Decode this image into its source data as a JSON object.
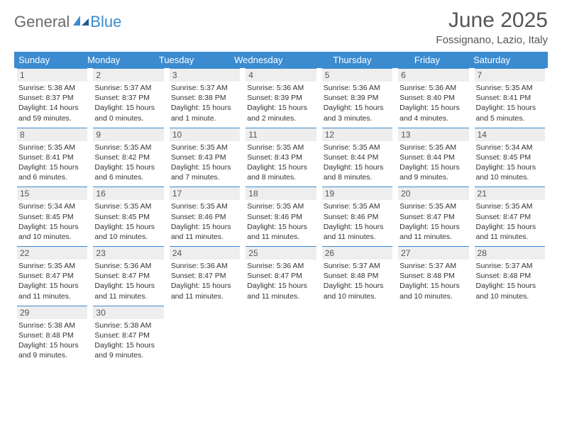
{
  "logo": {
    "text1": "General",
    "text2": "Blue"
  },
  "title": {
    "month": "June 2025",
    "location": "Fossignano, Lazio, Italy"
  },
  "colors": {
    "header_bg": "#3b8bd0",
    "header_text": "#ffffff",
    "daynum_bg": "#eeeeee",
    "daynum_border": "#3b8bd0",
    "body_text": "#333333",
    "title_text": "#555555",
    "logo_gray": "#6a6a6a",
    "logo_blue": "#3b8bd0"
  },
  "day_names": [
    "Sunday",
    "Monday",
    "Tuesday",
    "Wednesday",
    "Thursday",
    "Friday",
    "Saturday"
  ],
  "weeks": [
    [
      {
        "n": "1",
        "sunrise": "Sunrise: 5:38 AM",
        "sunset": "Sunset: 8:37 PM",
        "daylight": "Daylight: 14 hours and 59 minutes."
      },
      {
        "n": "2",
        "sunrise": "Sunrise: 5:37 AM",
        "sunset": "Sunset: 8:37 PM",
        "daylight": "Daylight: 15 hours and 0 minutes."
      },
      {
        "n": "3",
        "sunrise": "Sunrise: 5:37 AM",
        "sunset": "Sunset: 8:38 PM",
        "daylight": "Daylight: 15 hours and 1 minute."
      },
      {
        "n": "4",
        "sunrise": "Sunrise: 5:36 AM",
        "sunset": "Sunset: 8:39 PM",
        "daylight": "Daylight: 15 hours and 2 minutes."
      },
      {
        "n": "5",
        "sunrise": "Sunrise: 5:36 AM",
        "sunset": "Sunset: 8:39 PM",
        "daylight": "Daylight: 15 hours and 3 minutes."
      },
      {
        "n": "6",
        "sunrise": "Sunrise: 5:36 AM",
        "sunset": "Sunset: 8:40 PM",
        "daylight": "Daylight: 15 hours and 4 minutes."
      },
      {
        "n": "7",
        "sunrise": "Sunrise: 5:35 AM",
        "sunset": "Sunset: 8:41 PM",
        "daylight": "Daylight: 15 hours and 5 minutes."
      }
    ],
    [
      {
        "n": "8",
        "sunrise": "Sunrise: 5:35 AM",
        "sunset": "Sunset: 8:41 PM",
        "daylight": "Daylight: 15 hours and 6 minutes."
      },
      {
        "n": "9",
        "sunrise": "Sunrise: 5:35 AM",
        "sunset": "Sunset: 8:42 PM",
        "daylight": "Daylight: 15 hours and 6 minutes."
      },
      {
        "n": "10",
        "sunrise": "Sunrise: 5:35 AM",
        "sunset": "Sunset: 8:43 PM",
        "daylight": "Daylight: 15 hours and 7 minutes."
      },
      {
        "n": "11",
        "sunrise": "Sunrise: 5:35 AM",
        "sunset": "Sunset: 8:43 PM",
        "daylight": "Daylight: 15 hours and 8 minutes."
      },
      {
        "n": "12",
        "sunrise": "Sunrise: 5:35 AM",
        "sunset": "Sunset: 8:44 PM",
        "daylight": "Daylight: 15 hours and 8 minutes."
      },
      {
        "n": "13",
        "sunrise": "Sunrise: 5:35 AM",
        "sunset": "Sunset: 8:44 PM",
        "daylight": "Daylight: 15 hours and 9 minutes."
      },
      {
        "n": "14",
        "sunrise": "Sunrise: 5:34 AM",
        "sunset": "Sunset: 8:45 PM",
        "daylight": "Daylight: 15 hours and 10 minutes."
      }
    ],
    [
      {
        "n": "15",
        "sunrise": "Sunrise: 5:34 AM",
        "sunset": "Sunset: 8:45 PM",
        "daylight": "Daylight: 15 hours and 10 minutes."
      },
      {
        "n": "16",
        "sunrise": "Sunrise: 5:35 AM",
        "sunset": "Sunset: 8:45 PM",
        "daylight": "Daylight: 15 hours and 10 minutes."
      },
      {
        "n": "17",
        "sunrise": "Sunrise: 5:35 AM",
        "sunset": "Sunset: 8:46 PM",
        "daylight": "Daylight: 15 hours and 11 minutes."
      },
      {
        "n": "18",
        "sunrise": "Sunrise: 5:35 AM",
        "sunset": "Sunset: 8:46 PM",
        "daylight": "Daylight: 15 hours and 11 minutes."
      },
      {
        "n": "19",
        "sunrise": "Sunrise: 5:35 AM",
        "sunset": "Sunset: 8:46 PM",
        "daylight": "Daylight: 15 hours and 11 minutes."
      },
      {
        "n": "20",
        "sunrise": "Sunrise: 5:35 AM",
        "sunset": "Sunset: 8:47 PM",
        "daylight": "Daylight: 15 hours and 11 minutes."
      },
      {
        "n": "21",
        "sunrise": "Sunrise: 5:35 AM",
        "sunset": "Sunset: 8:47 PM",
        "daylight": "Daylight: 15 hours and 11 minutes."
      }
    ],
    [
      {
        "n": "22",
        "sunrise": "Sunrise: 5:35 AM",
        "sunset": "Sunset: 8:47 PM",
        "daylight": "Daylight: 15 hours and 11 minutes."
      },
      {
        "n": "23",
        "sunrise": "Sunrise: 5:36 AM",
        "sunset": "Sunset: 8:47 PM",
        "daylight": "Daylight: 15 hours and 11 minutes."
      },
      {
        "n": "24",
        "sunrise": "Sunrise: 5:36 AM",
        "sunset": "Sunset: 8:47 PM",
        "daylight": "Daylight: 15 hours and 11 minutes."
      },
      {
        "n": "25",
        "sunrise": "Sunrise: 5:36 AM",
        "sunset": "Sunset: 8:47 PM",
        "daylight": "Daylight: 15 hours and 11 minutes."
      },
      {
        "n": "26",
        "sunrise": "Sunrise: 5:37 AM",
        "sunset": "Sunset: 8:48 PM",
        "daylight": "Daylight: 15 hours and 10 minutes."
      },
      {
        "n": "27",
        "sunrise": "Sunrise: 5:37 AM",
        "sunset": "Sunset: 8:48 PM",
        "daylight": "Daylight: 15 hours and 10 minutes."
      },
      {
        "n": "28",
        "sunrise": "Sunrise: 5:37 AM",
        "sunset": "Sunset: 8:48 PM",
        "daylight": "Daylight: 15 hours and 10 minutes."
      }
    ],
    [
      {
        "n": "29",
        "sunrise": "Sunrise: 5:38 AM",
        "sunset": "Sunset: 8:48 PM",
        "daylight": "Daylight: 15 hours and 9 minutes."
      },
      {
        "n": "30",
        "sunrise": "Sunrise: 5:38 AM",
        "sunset": "Sunset: 8:47 PM",
        "daylight": "Daylight: 15 hours and 9 minutes."
      },
      null,
      null,
      null,
      null,
      null
    ]
  ]
}
